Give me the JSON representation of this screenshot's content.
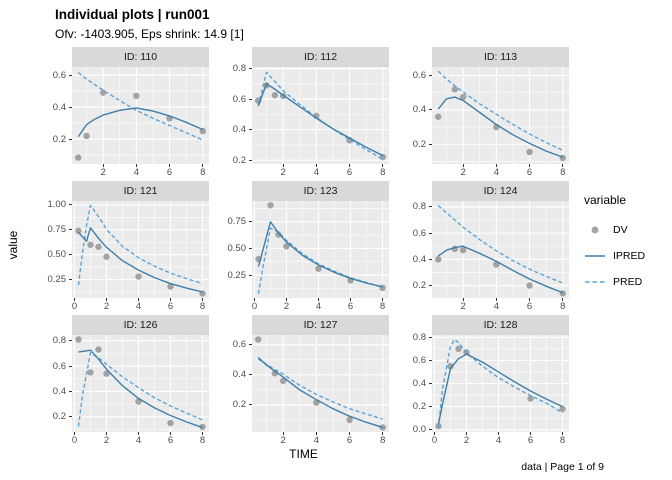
{
  "header": {
    "title": "Individual plots | run001",
    "subtitle": "Ofv: -1403.905, Eps shrink: 14.9 [1]"
  },
  "axis": {
    "x_label": "TIME",
    "y_label": "value"
  },
  "caption": "data | Page 1 of 9",
  "legend": {
    "title": "variable",
    "items": [
      {
        "label": "DV",
        "type": "point"
      },
      {
        "label": "IPRED",
        "type": "solid"
      },
      {
        "label": "PRED",
        "type": "dashed"
      }
    ]
  },
  "colors": {
    "dv": "#8f8f8f",
    "ipred": "#3e7fa8",
    "pred": "#5aa3d8",
    "panel_bg": "#ebebeb",
    "strip_bg": "#d9d9d9",
    "grid": "#ffffff",
    "tick_text": "#4d4d4d",
    "tick_mark": "#333333"
  },
  "chart_data": [
    {
      "type": "line+scatter",
      "id_label": "ID: 110",
      "xlim": [
        0.125,
        8.375
      ],
      "xticks": [
        2,
        4,
        6,
        8
      ],
      "xtick_labels": [
        "2",
        "4",
        "6",
        "8"
      ],
      "ylim": [
        0.045,
        0.65
      ],
      "yticks": [
        0.2,
        0.4,
        0.6
      ],
      "ytick_labels": [
        "0.2",
        "0.4",
        "0.6"
      ],
      "dv": [
        [
          0.5,
          0.085
        ],
        [
          1,
          0.22
        ],
        [
          2,
          0.49
        ],
        [
          4,
          0.47
        ],
        [
          6,
          0.33
        ],
        [
          8,
          0.25
        ]
      ],
      "ipred": [
        [
          0.5,
          0.215
        ],
        [
          1,
          0.29
        ],
        [
          1.5,
          0.325
        ],
        [
          2,
          0.35
        ],
        [
          3,
          0.38
        ],
        [
          4,
          0.395
        ],
        [
          5,
          0.375
        ],
        [
          6,
          0.345
        ],
        [
          7,
          0.305
        ],
        [
          8,
          0.26
        ]
      ],
      "pred": [
        [
          0.5,
          0.615
        ],
        [
          1,
          0.575
        ],
        [
          2,
          0.505
        ],
        [
          3,
          0.44
        ],
        [
          4,
          0.38
        ],
        [
          5,
          0.33
        ],
        [
          6,
          0.285
        ],
        [
          7,
          0.24
        ],
        [
          8,
          0.195
        ]
      ]
    },
    {
      "type": "line+scatter",
      "id_label": "ID: 112",
      "xlim": [
        0.125,
        8.375
      ],
      "xticks": [
        2,
        4,
        6,
        8
      ],
      "xtick_labels": [
        "2",
        "4",
        "6",
        "8"
      ],
      "ylim": [
        0.175,
        0.81
      ],
      "yticks": [
        0.2,
        0.4,
        0.6,
        0.8
      ],
      "ytick_labels": [
        "0.2",
        "0.4",
        "0.6",
        "0.8"
      ],
      "dv": [
        [
          0.5,
          0.59
        ],
        [
          1,
          0.69
        ],
        [
          1.5,
          0.625
        ],
        [
          2,
          0.62
        ],
        [
          4,
          0.49
        ],
        [
          6,
          0.33
        ],
        [
          8,
          0.22
        ]
      ],
      "ipred": [
        [
          0.5,
          0.555
        ],
        [
          1,
          0.7
        ],
        [
          1.5,
          0.665
        ],
        [
          2,
          0.625
        ],
        [
          3,
          0.55
        ],
        [
          4,
          0.475
        ],
        [
          5,
          0.405
        ],
        [
          6,
          0.345
        ],
        [
          7,
          0.285
        ],
        [
          8,
          0.23
        ]
      ],
      "pred": [
        [
          0.5,
          0.555
        ],
        [
          1,
          0.775
        ],
        [
          1.5,
          0.715
        ],
        [
          2,
          0.655
        ],
        [
          3,
          0.565
        ],
        [
          4,
          0.48
        ],
        [
          5,
          0.405
        ],
        [
          6,
          0.335
        ],
        [
          7,
          0.27
        ],
        [
          8,
          0.205
        ]
      ]
    },
    {
      "type": "line+scatter",
      "id_label": "ID: 113",
      "xlim": [
        0.125,
        8.375
      ],
      "xticks": [
        2,
        4,
        6,
        8
      ],
      "xtick_labels": [
        "2",
        "4",
        "6",
        "8"
      ],
      "ylim": [
        0.085,
        0.65
      ],
      "yticks": [
        0.2,
        0.4,
        0.6
      ],
      "ytick_labels": [
        "0.2",
        "0.4",
        "0.6"
      ],
      "dv": [
        [
          0.5,
          0.36
        ],
        [
          1.5,
          0.52
        ],
        [
          2,
          0.475
        ],
        [
          4,
          0.3
        ],
        [
          6,
          0.155
        ],
        [
          8,
          0.12
        ]
      ],
      "ipred": [
        [
          0.5,
          0.405
        ],
        [
          1,
          0.465
        ],
        [
          1.5,
          0.475
        ],
        [
          2,
          0.455
        ],
        [
          3,
          0.385
        ],
        [
          4,
          0.315
        ],
        [
          5,
          0.255
        ],
        [
          6,
          0.205
        ],
        [
          7,
          0.16
        ],
        [
          8,
          0.125
        ]
      ],
      "pred": [
        [
          0.5,
          0.625
        ],
        [
          1,
          0.58
        ],
        [
          1.5,
          0.54
        ],
        [
          2,
          0.505
        ],
        [
          3,
          0.435
        ],
        [
          4,
          0.375
        ],
        [
          5,
          0.315
        ],
        [
          6,
          0.26
        ],
        [
          7,
          0.21
        ],
        [
          8,
          0.165
        ]
      ]
    },
    {
      "type": "line+scatter",
      "id_label": "ID: 121",
      "xlim": [
        -0.155,
        8.405
      ],
      "xticks": [
        0,
        2,
        4,
        6,
        8
      ],
      "xtick_labels": [
        "0",
        "2",
        "4",
        "6",
        "8"
      ],
      "ylim": [
        0.065,
        1.04
      ],
      "yticks": [
        0.25,
        0.5,
        0.75,
        1.0
      ],
      "ytick_labels": [
        "0.25",
        "0.50",
        "0.75",
        "1.00"
      ],
      "dv": [
        [
          0.25,
          0.74
        ],
        [
          1,
          0.6
        ],
        [
          1.5,
          0.58
        ],
        [
          2,
          0.48
        ],
        [
          4,
          0.28
        ],
        [
          6,
          0.18
        ],
        [
          8,
          0.11
        ]
      ],
      "ipred": [
        [
          0.25,
          0.725
        ],
        [
          0.75,
          0.635
        ],
        [
          1,
          0.77
        ],
        [
          1.5,
          0.665
        ],
        [
          2,
          0.575
        ],
        [
          3,
          0.44
        ],
        [
          4,
          0.345
        ],
        [
          5,
          0.27
        ],
        [
          6,
          0.21
        ],
        [
          7,
          0.165
        ],
        [
          8,
          0.125
        ]
      ],
      "pred": [
        [
          0.25,
          0.195
        ],
        [
          0.5,
          0.52
        ],
        [
          0.75,
          0.79
        ],
        [
          1,
          0.995
        ],
        [
          1.5,
          0.885
        ],
        [
          2,
          0.755
        ],
        [
          3,
          0.585
        ],
        [
          4,
          0.47
        ],
        [
          5,
          0.385
        ],
        [
          6,
          0.315
        ],
        [
          7,
          0.26
        ],
        [
          8,
          0.21
        ]
      ]
    },
    {
      "type": "line+scatter",
      "id_label": "ID: 123",
      "xlim": [
        -0.155,
        8.405
      ],
      "xticks": [
        0,
        2,
        4,
        6,
        8
      ],
      "xtick_labels": [
        "0",
        "2",
        "4",
        "6",
        "8"
      ],
      "ylim": [
        0.035,
        0.945
      ],
      "yticks": [
        0.25,
        0.5,
        0.75
      ],
      "ytick_labels": [
        "0.25",
        "0.50",
        "0.75"
      ],
      "dv": [
        [
          0.25,
          0.4
        ],
        [
          1,
          0.905
        ],
        [
          1.5,
          0.63
        ],
        [
          2,
          0.52
        ],
        [
          4,
          0.31
        ],
        [
          6,
          0.2
        ],
        [
          8,
          0.13
        ]
      ],
      "ipred": [
        [
          0.25,
          0.33
        ],
        [
          1,
          0.75
        ],
        [
          1.5,
          0.645
        ],
        [
          2,
          0.56
        ],
        [
          3,
          0.435
        ],
        [
          4,
          0.345
        ],
        [
          5,
          0.275
        ],
        [
          6,
          0.22
        ],
        [
          7,
          0.175
        ],
        [
          8,
          0.14
        ]
      ],
      "pred": [
        [
          0.25,
          0.075
        ],
        [
          0.5,
          0.3
        ],
        [
          1,
          0.69
        ],
        [
          1.5,
          0.655
        ],
        [
          2,
          0.575
        ],
        [
          3,
          0.45
        ],
        [
          4,
          0.355
        ],
        [
          5,
          0.285
        ],
        [
          6,
          0.225
        ],
        [
          7,
          0.18
        ],
        [
          8,
          0.135
        ]
      ]
    },
    {
      "type": "line+scatter",
      "id_label": "ID: 124",
      "xlim": [
        0.125,
        8.375
      ],
      "xticks": [
        2,
        4,
        6,
        8
      ],
      "xtick_labels": [
        "2",
        "4",
        "6",
        "8"
      ],
      "ylim": [
        0.105,
        0.845
      ],
      "yticks": [
        0.2,
        0.4,
        0.6,
        0.8
      ],
      "ytick_labels": [
        "0.2",
        "0.4",
        "0.6",
        "0.8"
      ],
      "dv": [
        [
          0.5,
          0.4
        ],
        [
          1.5,
          0.48
        ],
        [
          2,
          0.47
        ],
        [
          4,
          0.36
        ],
        [
          6,
          0.2
        ],
        [
          8,
          0.14
        ]
      ],
      "ipred": [
        [
          0.5,
          0.425
        ],
        [
          1,
          0.47
        ],
        [
          1.5,
          0.49
        ],
        [
          2,
          0.5
        ],
        [
          3,
          0.445
        ],
        [
          4,
          0.385
        ],
        [
          5,
          0.315
        ],
        [
          6,
          0.25
        ],
        [
          7,
          0.195
        ],
        [
          8,
          0.145
        ]
      ],
      "pred": [
        [
          0.5,
          0.81
        ],
        [
          1,
          0.755
        ],
        [
          2,
          0.645
        ],
        [
          3,
          0.55
        ],
        [
          4,
          0.465
        ],
        [
          5,
          0.39
        ],
        [
          6,
          0.325
        ],
        [
          7,
          0.27
        ],
        [
          8,
          0.22
        ]
      ]
    },
    {
      "type": "line+scatter",
      "id_label": "ID: 126",
      "xlim": [
        -0.155,
        8.405
      ],
      "xticks": [
        0,
        2,
        4,
        6,
        8
      ],
      "xtick_labels": [
        "0",
        "2",
        "4",
        "6",
        "8"
      ],
      "ylim": [
        0.08,
        0.845
      ],
      "yticks": [
        0.2,
        0.4,
        0.6,
        0.8
      ],
      "ytick_labels": [
        "0.2",
        "0.4",
        "0.6",
        "0.8"
      ],
      "dv": [
        [
          0.25,
          0.81
        ],
        [
          1,
          0.55
        ],
        [
          1.5,
          0.73
        ],
        [
          2,
          0.54
        ],
        [
          4,
          0.32
        ],
        [
          6,
          0.15
        ],
        [
          8,
          0.12
        ]
      ],
      "ipred": [
        [
          0.25,
          0.71
        ],
        [
          1,
          0.725
        ],
        [
          1.5,
          0.655
        ],
        [
          2,
          0.575
        ],
        [
          3,
          0.445
        ],
        [
          4,
          0.345
        ],
        [
          5,
          0.27
        ],
        [
          6,
          0.21
        ],
        [
          7,
          0.16
        ],
        [
          8,
          0.115
        ]
      ],
      "pred": [
        [
          0.25,
          0.125
        ],
        [
          0.5,
          0.37
        ],
        [
          1,
          0.705
        ],
        [
          1.5,
          0.665
        ],
        [
          2,
          0.615
        ],
        [
          3,
          0.515
        ],
        [
          4,
          0.43
        ],
        [
          5,
          0.35
        ],
        [
          6,
          0.285
        ],
        [
          7,
          0.23
        ],
        [
          8,
          0.175
        ]
      ]
    },
    {
      "type": "line+scatter",
      "id_label": "ID: 127",
      "xlim": [
        0.125,
        8.375
      ],
      "xticks": [
        2,
        4,
        6,
        8
      ],
      "xtick_labels": [
        "2",
        "4",
        "6",
        "8"
      ],
      "ylim": [
        0.02,
        0.665
      ],
      "yticks": [
        0.2,
        0.4,
        0.6
      ],
      "ytick_labels": [
        "0.2",
        "0.4",
        "0.6"
      ],
      "dv": [
        [
          0.5,
          0.635
        ],
        [
          1.5,
          0.41
        ],
        [
          2,
          0.36
        ],
        [
          4,
          0.215
        ],
        [
          6,
          0.1
        ],
        [
          8,
          0.05
        ]
      ],
      "ipred": [
        [
          0.5,
          0.515
        ],
        [
          1,
          0.465
        ],
        [
          1.5,
          0.425
        ],
        [
          2,
          0.385
        ],
        [
          3,
          0.3
        ],
        [
          4,
          0.235
        ],
        [
          5,
          0.175
        ],
        [
          6,
          0.125
        ],
        [
          7,
          0.085
        ],
        [
          8,
          0.05
        ]
      ],
      "pred": [
        [
          0.5,
          0.505
        ],
        [
          1,
          0.47
        ],
        [
          1.5,
          0.435
        ],
        [
          2,
          0.405
        ],
        [
          3,
          0.33
        ],
        [
          4,
          0.27
        ],
        [
          5,
          0.22
        ],
        [
          6,
          0.175
        ],
        [
          7,
          0.14
        ],
        [
          8,
          0.105
        ]
      ]
    },
    {
      "type": "line+scatter",
      "id_label": "ID: 128",
      "xlim": [
        -0.155,
        8.405
      ],
      "xticks": [
        0,
        2,
        4,
        6,
        8
      ],
      "xtick_labels": [
        "0",
        "2",
        "4",
        "6",
        "8"
      ],
      "ylim": [
        -0.02,
        0.82
      ],
      "yticks": [
        0,
        0.2,
        0.4,
        0.6,
        0.8
      ],
      "ytick_labels": [
        "0.0",
        "0.2",
        "0.4",
        "0.6",
        "0.8"
      ],
      "dv": [
        [
          0.25,
          0.03
        ],
        [
          1,
          0.55
        ],
        [
          1.5,
          0.7
        ],
        [
          2,
          0.67
        ],
        [
          6,
          0.27
        ],
        [
          8,
          0.18
        ]
      ],
      "ipred": [
        [
          0.25,
          0.05
        ],
        [
          0.5,
          0.22
        ],
        [
          1,
          0.53
        ],
        [
          1.5,
          0.615
        ],
        [
          2,
          0.655
        ],
        [
          3,
          0.585
        ],
        [
          4,
          0.5
        ],
        [
          5,
          0.415
        ],
        [
          6,
          0.335
        ],
        [
          7,
          0.265
        ],
        [
          8,
          0.2
        ]
      ],
      "pred": [
        [
          0.25,
          0.02
        ],
        [
          0.5,
          0.35
        ],
        [
          1,
          0.72
        ],
        [
          1.25,
          0.78
        ],
        [
          1.5,
          0.755
        ],
        [
          2,
          0.665
        ],
        [
          3,
          0.55
        ],
        [
          4,
          0.45
        ],
        [
          5,
          0.37
        ],
        [
          6,
          0.295
        ],
        [
          7,
          0.23
        ],
        [
          8,
          0.145
        ]
      ]
    }
  ]
}
